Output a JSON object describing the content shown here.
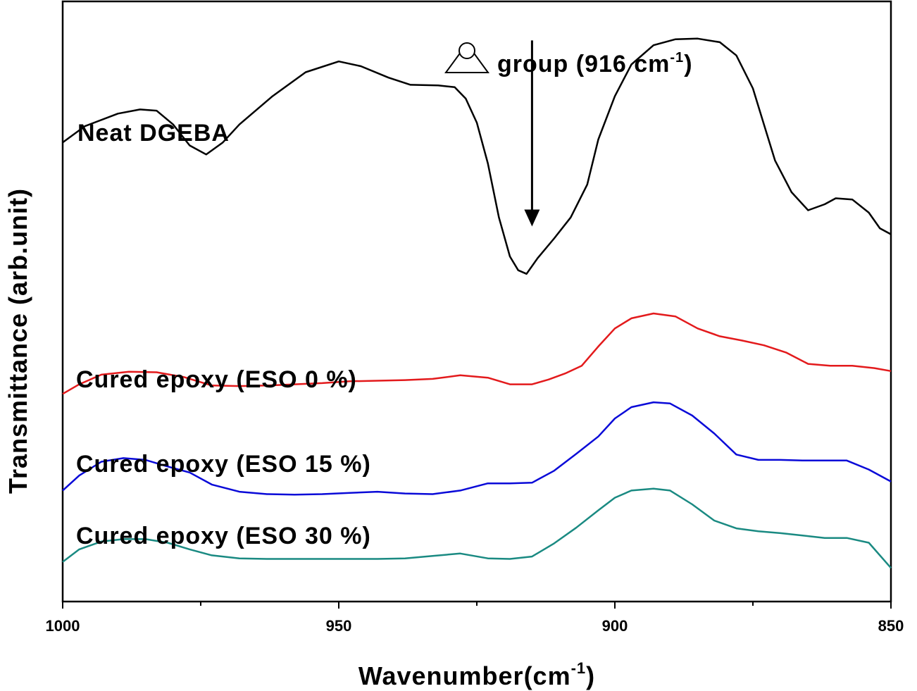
{
  "chart_data": {
    "type": "line",
    "xlabel": "Wavenumber(cm",
    "xlabel_sup": "-1",
    "xlabel_close": ")",
    "ylabel": "Transmittance (arb.unit)",
    "xlim": [
      1000,
      850
    ],
    "x_ticks": [
      {
        "value": 1000,
        "label": "1000"
      },
      {
        "value": 950,
        "label": "950"
      },
      {
        "value": 900,
        "label": "900"
      },
      {
        "value": 850,
        "label": "850"
      }
    ],
    "x_minor_ticks": [
      975,
      925,
      875
    ],
    "y_ticks": "none",
    "ylim": [
      0,
      10
    ],
    "grid": false,
    "legend": "none",
    "series": [
      {
        "name": "Neat DGEBA",
        "color": "#000000",
        "label_anchor_x": 997,
        "x": [
          1000,
          996,
          990,
          986,
          983,
          980,
          977,
          974,
          971,
          968,
          962,
          956,
          950,
          946,
          941,
          937,
          932,
          929,
          927,
          925,
          923,
          921,
          919,
          917.5,
          916,
          914,
          911,
          908,
          905,
          903,
          900,
          897,
          893,
          889,
          885,
          881,
          878,
          875,
          873,
          871,
          868,
          865,
          862,
          860,
          857,
          854,
          852,
          850
        ],
        "values": [
          7.65,
          7.92,
          8.13,
          8.2,
          8.18,
          7.95,
          7.6,
          7.45,
          7.65,
          7.95,
          8.42,
          8.82,
          9.0,
          8.92,
          8.73,
          8.61,
          8.6,
          8.57,
          8.38,
          7.98,
          7.3,
          6.4,
          5.75,
          5.52,
          5.46,
          5.72,
          6.05,
          6.4,
          6.95,
          7.7,
          8.42,
          8.95,
          9.27,
          9.37,
          9.38,
          9.32,
          9.1,
          8.55,
          7.95,
          7.35,
          6.82,
          6.52,
          6.62,
          6.72,
          6.7,
          6.48,
          6.22,
          6.12
        ]
      },
      {
        "name": "Cured epoxy (ESO 0 %)",
        "color": "#e31a1c",
        "label_anchor_x": 997,
        "x": [
          1000,
          997,
          993,
          988,
          983,
          978,
          973,
          968,
          963,
          958,
          953,
          948,
          943,
          938,
          933,
          928,
          923,
          919,
          915,
          912,
          909,
          906,
          903,
          900,
          897,
          893,
          889,
          885,
          881,
          877,
          873,
          869,
          865,
          861,
          857,
          853,
          850
        ],
        "values": [
          3.46,
          3.62,
          3.78,
          3.83,
          3.82,
          3.74,
          3.6,
          3.59,
          3.6,
          3.62,
          3.64,
          3.67,
          3.68,
          3.69,
          3.71,
          3.77,
          3.73,
          3.62,
          3.62,
          3.7,
          3.8,
          3.93,
          4.25,
          4.55,
          4.72,
          4.8,
          4.75,
          4.55,
          4.42,
          4.35,
          4.27,
          4.15,
          3.96,
          3.93,
          3.93,
          3.89,
          3.84
        ]
      },
      {
        "name": "Cured epoxy (ESO 15 %)",
        "color": "#0a0ad8",
        "label_anchor_x": 997,
        "x": [
          1000,
          997,
          993,
          989,
          985,
          981,
          977,
          973,
          968,
          963,
          958,
          953,
          948,
          943,
          938,
          933,
          928,
          923,
          919,
          915,
          911,
          907,
          903,
          900,
          897,
          893,
          890,
          886,
          882,
          878,
          874,
          870,
          866,
          862,
          858,
          854,
          850
        ],
        "values": [
          1.85,
          2.1,
          2.33,
          2.39,
          2.36,
          2.25,
          2.15,
          1.95,
          1.83,
          1.79,
          1.78,
          1.79,
          1.81,
          1.83,
          1.8,
          1.79,
          1.85,
          1.97,
          1.97,
          1.98,
          2.18,
          2.46,
          2.75,
          3.05,
          3.24,
          3.32,
          3.3,
          3.1,
          2.8,
          2.45,
          2.36,
          2.36,
          2.35,
          2.35,
          2.35,
          2.2,
          2.0
        ]
      },
      {
        "name": "Cured epoxy (ESO 30 %)",
        "color": "#1a8a82",
        "label_anchor_x": 997,
        "x": [
          1000,
          997,
          993,
          989,
          985,
          981,
          977,
          973,
          968,
          963,
          958,
          953,
          948,
          943,
          938,
          933,
          928,
          923,
          919,
          915,
          911,
          907,
          903,
          900,
          897,
          893,
          890,
          886,
          882,
          878,
          874,
          870,
          866,
          862,
          858,
          854,
          850
        ],
        "values": [
          0.66,
          0.87,
          1.0,
          1.04,
          1.04,
          0.98,
          0.87,
          0.77,
          0.72,
          0.71,
          0.71,
          0.71,
          0.71,
          0.71,
          0.72,
          0.76,
          0.8,
          0.72,
          0.71,
          0.75,
          0.97,
          1.23,
          1.52,
          1.73,
          1.85,
          1.88,
          1.85,
          1.62,
          1.35,
          1.22,
          1.17,
          1.14,
          1.1,
          1.06,
          1.06,
          0.98,
          0.56
        ]
      }
    ],
    "annotations": [
      {
        "text": "group (916 cm",
        "sup": "-1",
        "close": ")",
        "icon": "epoxide-triangle-icon",
        "arrow_x": 915,
        "arrow_from_y": 9.35,
        "arrow_to_y": 6.25
      }
    ]
  }
}
